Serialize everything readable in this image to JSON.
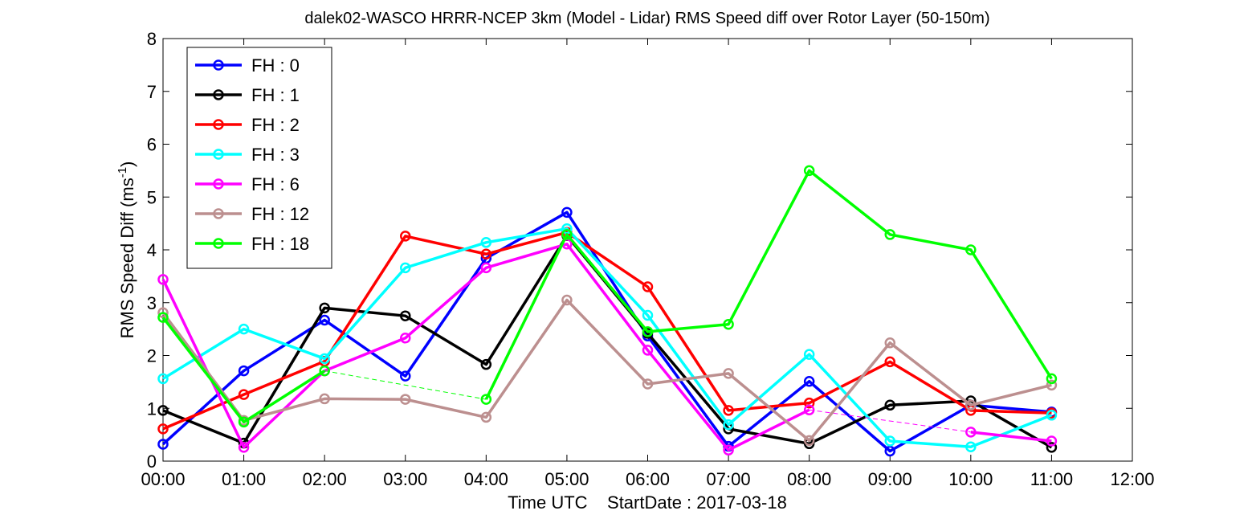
{
  "chart_data": {
    "type": "line",
    "title": "dalek02-WASCO HRRR-NCEP 3km (Model - Lidar) RMS Speed diff over Rotor Layer (50-150m)",
    "xlabel": "Time UTC    StartDate : 2017-03-18",
    "ylabel_main": "RMS Speed Diff (ms",
    "ylabel_sup": "-1",
    "ylabel_close": ")",
    "xlim": [
      0,
      12
    ],
    "ylim": [
      0,
      8
    ],
    "x_ticks": [
      0,
      1,
      2,
      3,
      4,
      5,
      6,
      7,
      8,
      9,
      10,
      11,
      12
    ],
    "x_tick_labels": [
      "00:00",
      "01:00",
      "02:00",
      "03:00",
      "04:00",
      "05:00",
      "06:00",
      "07:00",
      "08:00",
      "09:00",
      "10:00",
      "11:00",
      "12:00"
    ],
    "y_ticks": [
      0,
      1,
      2,
      3,
      4,
      5,
      6,
      7,
      8
    ],
    "y_tick_labels": [
      "0",
      "1",
      "2",
      "3",
      "4",
      "5",
      "6",
      "7",
      "8"
    ],
    "grid": false,
    "legend_position": "top-left",
    "series": [
      {
        "name": "FH : 0",
        "color": "#0000ff",
        "x": [
          0,
          1,
          2,
          3,
          4,
          5,
          6,
          7,
          8,
          9,
          10,
          11
        ],
        "values": [
          0.32,
          1.71,
          2.67,
          1.61,
          3.84,
          4.71,
          2.37,
          0.28,
          1.51,
          0.19,
          1.06,
          0.93
        ]
      },
      {
        "name": "FH : 1",
        "color": "#000000",
        "x": [
          0,
          1,
          2,
          3,
          4,
          5,
          6,
          7,
          8,
          9,
          10,
          11
        ],
        "values": [
          0.96,
          0.34,
          2.9,
          2.75,
          1.83,
          4.27,
          2.42,
          0.61,
          0.33,
          1.06,
          1.14,
          0.26
        ]
      },
      {
        "name": "FH : 2",
        "color": "#ff0000",
        "x": [
          0,
          1,
          2,
          3,
          4,
          5,
          6,
          7,
          8,
          9,
          10,
          11
        ],
        "values": [
          0.61,
          1.26,
          1.89,
          4.26,
          3.92,
          4.33,
          3.3,
          0.96,
          1.1,
          1.88,
          0.96,
          0.91
        ]
      },
      {
        "name": "FH : 3",
        "color": "#00ffff",
        "x": [
          0,
          1,
          2,
          3,
          4,
          5,
          6,
          7,
          8,
          9,
          10,
          11
        ],
        "values": [
          1.56,
          2.5,
          1.94,
          3.66,
          4.14,
          4.4,
          2.76,
          0.69,
          2.02,
          0.38,
          0.27,
          0.87
        ]
      },
      {
        "name": "FH : 6",
        "color": "#ff00ff",
        "x": [
          0,
          1,
          2,
          3,
          4,
          5,
          6,
          7,
          8,
          10,
          11
        ],
        "values": [
          3.44,
          0.26,
          1.71,
          2.33,
          3.66,
          4.11,
          2.1,
          0.21,
          0.97,
          0.55,
          0.38
        ],
        "gaps_dashed": [
          [
            8,
            10
          ]
        ]
      },
      {
        "name": "FH : 12",
        "color": "#bc8f8f",
        "x": [
          0,
          1,
          2,
          3,
          4,
          5,
          6,
          7,
          8,
          9,
          10,
          11
        ],
        "values": [
          2.81,
          0.77,
          1.18,
          1.17,
          0.83,
          3.05,
          1.46,
          1.66,
          0.39,
          2.24,
          1.06,
          1.44
        ]
      },
      {
        "name": "FH : 18",
        "color": "#00ff00",
        "x": [
          0,
          1,
          2,
          4,
          5,
          6,
          7,
          8,
          9,
          10,
          11
        ],
        "values": [
          2.72,
          0.74,
          1.71,
          1.17,
          4.29,
          2.45,
          2.59,
          5.5,
          4.29,
          4.0,
          1.56
        ],
        "gaps_dashed": [
          [
            2,
            4
          ]
        ]
      }
    ]
  }
}
